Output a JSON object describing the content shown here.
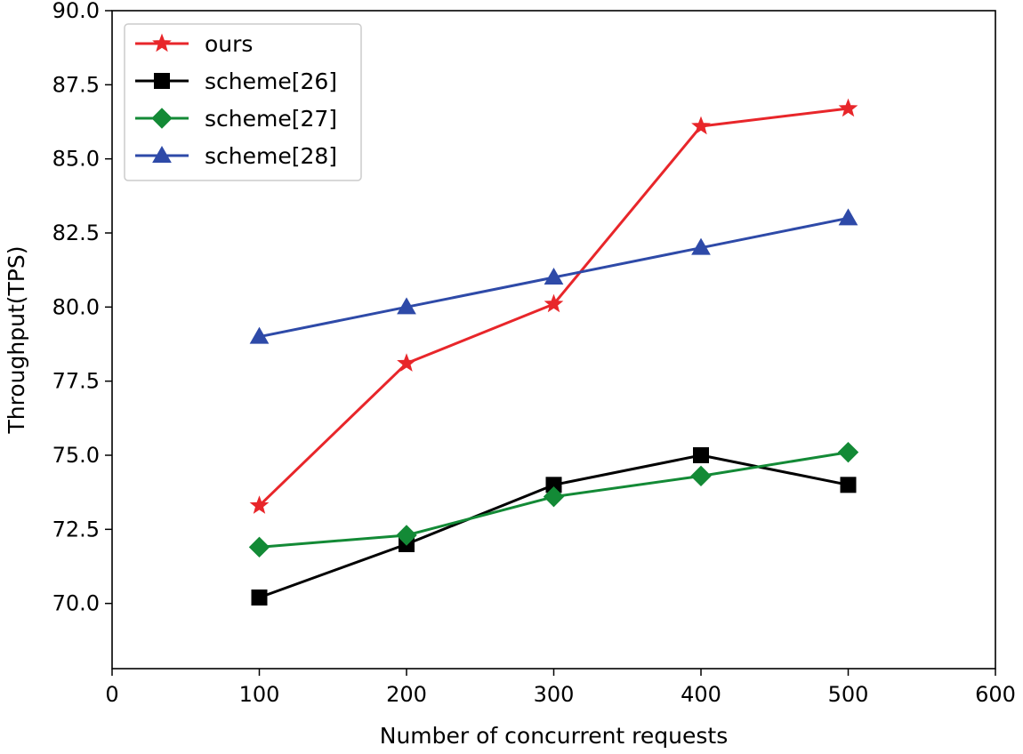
{
  "chart_data": {
    "type": "line",
    "title": "",
    "xlabel": "Number of concurrent requests",
    "ylabel": "Throughput(TPS)",
    "xlim": [
      0,
      600
    ],
    "ylim": [
      67.8,
      90.0
    ],
    "xticks": [
      0,
      100,
      200,
      300,
      400,
      500,
      600
    ],
    "xtick_labels": [
      "0",
      "100",
      "200",
      "300",
      "400",
      "500",
      "600"
    ],
    "yticks": [
      70.0,
      72.5,
      75.0,
      77.5,
      80.0,
      82.5,
      85.0,
      87.5,
      90.0
    ],
    "ytick_labels": [
      "70.0",
      "72.5",
      "75.0",
      "77.5",
      "80.0",
      "82.5",
      "85.0",
      "87.5",
      "90.0"
    ],
    "grid": false,
    "legend_position": "top-left",
    "x": [
      100,
      200,
      300,
      400,
      500
    ],
    "series": [
      {
        "name": "ours",
        "color": "#e8262a",
        "marker": "star",
        "values": [
          73.3,
          78.1,
          80.1,
          86.1,
          86.7
        ]
      },
      {
        "name": "scheme[26]",
        "color": "#000000",
        "marker": "square",
        "values": [
          70.2,
          72.0,
          74.0,
          75.0,
          74.0
        ]
      },
      {
        "name": "scheme[27]",
        "color": "#138a36",
        "marker": "diamond",
        "values": [
          71.9,
          72.3,
          73.6,
          74.3,
          75.1
        ]
      },
      {
        "name": "scheme[28]",
        "color": "#2e4aa8",
        "marker": "triangle",
        "values": [
          79.0,
          80.0,
          81.0,
          82.0,
          83.0
        ]
      }
    ]
  }
}
